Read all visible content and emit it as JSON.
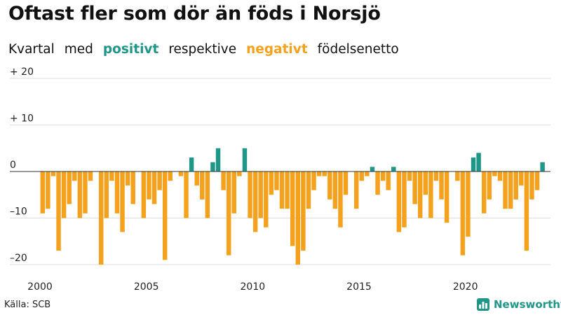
{
  "title": "Oftast fler som dör än föds i Norsjö",
  "subtitle": {
    "w1": "Kvartal",
    "w2": "med",
    "positive": "positivt",
    "w3": "respektive",
    "negative": "negativt",
    "w4": "födelsenetto"
  },
  "source": "Källa: SCB",
  "brand": "Newsworthy",
  "colors": {
    "positive": "#1f9688",
    "negative": "#f4a11d",
    "grid": "#dddddd"
  },
  "chart_data": {
    "type": "bar",
    "x_start": 2000,
    "x_end": 2024,
    "periods_per_year": 4,
    "xticks": [
      2000,
      2005,
      2010,
      2015,
      2020
    ],
    "yticks": [
      20,
      10,
      0,
      -10,
      -20
    ],
    "ytick_labels": [
      "+ 20",
      "+ 10",
      "0",
      "–10",
      "–20"
    ],
    "ylim": [
      -21,
      20
    ],
    "values": [
      -9,
      -8,
      -1,
      -17,
      -10,
      -7,
      -2,
      -10,
      -9,
      -2,
      0,
      -20,
      -10,
      -2,
      -9,
      -13,
      -3,
      -7,
      0,
      -10,
      -6,
      -7,
      -4,
      -19,
      -2,
      0,
      -1,
      -10,
      3,
      -3,
      -6,
      -10,
      2,
      5,
      -4,
      -18,
      -9,
      -1,
      5,
      -10,
      -13,
      -10,
      -12,
      -5,
      -4,
      -8,
      -8,
      -16,
      -20,
      -17,
      -8,
      -4,
      -1,
      -1,
      -6,
      -8,
      -12,
      -5,
      0,
      -8,
      -2,
      -1,
      1,
      -5,
      -2,
      -4,
      1,
      -13,
      -12,
      -2,
      -7,
      -10,
      -5,
      -10,
      -2,
      -6,
      -11,
      0,
      -2,
      -18,
      -14,
      3,
      4,
      -9,
      -6,
      -1,
      -2,
      -8,
      -8,
      -6,
      -3,
      -17,
      -6,
      -4,
      2
    ]
  }
}
